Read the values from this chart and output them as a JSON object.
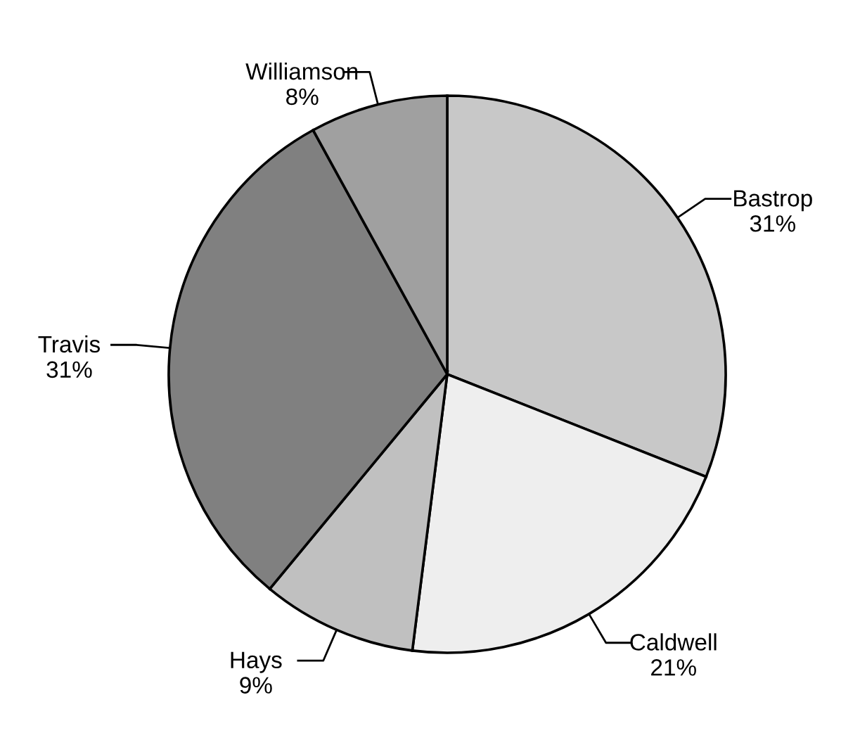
{
  "chart_data": {
    "type": "pie",
    "categories": [
      "Bastrop",
      "Caldwell",
      "Hays",
      "Travis",
      "Williamson"
    ],
    "values": [
      31,
      21,
      9,
      31,
      8
    ],
    "colors": [
      "#c8c8c8",
      "#eeeeee",
      "#c0c0c0",
      "#808080",
      "#a0a0a0"
    ],
    "value_labels": [
      "31%",
      "21%",
      "9%",
      "31%",
      "8%"
    ]
  }
}
